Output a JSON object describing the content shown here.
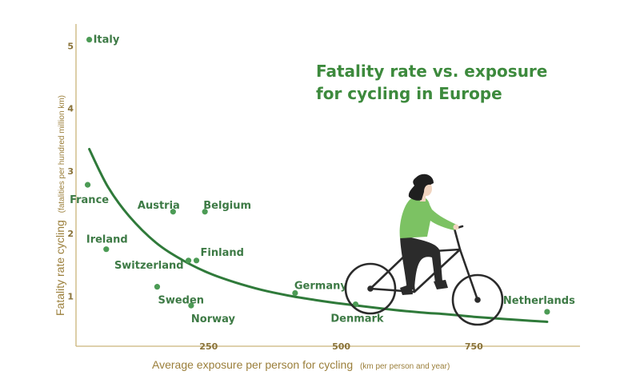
{
  "colors": {
    "axis": "#c9b37a",
    "axis_text": "#9b7f3b",
    "point": "#4c9b55",
    "label": "#3d7a45",
    "curve": "#2f7a3a",
    "title": "#3d8a3d",
    "person_top": "#7cc263",
    "person_pants": "#2b2b2b",
    "hair": "#1f1f1f",
    "bike": "#2b2b2b"
  },
  "chart_data": {
    "type": "scatter",
    "title_lines": [
      "Fatality rate vs. exposure",
      "for cycling in Europe"
    ],
    "xlabel": "Average exposure per person for cycling",
    "xlabel_units": "(km per person and year)",
    "ylabel": "Fatality rate cycling",
    "ylabel_units": "(fatalities per hundred million km)",
    "x_ticks": [
      250,
      500,
      750
    ],
    "y_ticks": [
      1,
      2,
      3,
      4,
      5
    ],
    "xlim": [
      0,
      950
    ],
    "ylim": [
      0.2,
      5.35
    ],
    "grid": false,
    "points": [
      {
        "name": "Italy",
        "x": 25,
        "y": 5.1
      },
      {
        "name": "France",
        "x": 22,
        "y": 2.78
      },
      {
        "name": "Austria",
        "x": 183,
        "y": 2.35
      },
      {
        "name": "Belgium",
        "x": 243,
        "y": 2.35
      },
      {
        "name": "Ireland",
        "x": 57,
        "y": 1.75
      },
      {
        "name": "Switzerland",
        "x": 212,
        "y": 1.57
      },
      {
        "name": "Finland",
        "x": 227,
        "y": 1.57
      },
      {
        "name": "Sweden",
        "x": 153,
        "y": 1.15
      },
      {
        "name": "Norway",
        "x": 217,
        "y": 0.85
      },
      {
        "name": "Germany",
        "x": 413,
        "y": 1.05
      },
      {
        "name": "Denmark",
        "x": 527,
        "y": 0.87
      },
      {
        "name": "Netherlands",
        "x": 888,
        "y": 0.75
      }
    ],
    "trend": {
      "x": [
        25,
        60,
        100,
        150,
        200,
        250,
        300,
        350,
        400,
        450,
        500,
        550,
        600,
        650,
        700,
        750,
        800,
        850,
        888
      ],
      "y": [
        3.35,
        2.75,
        2.28,
        1.86,
        1.58,
        1.37,
        1.22,
        1.1,
        1.01,
        0.94,
        0.88,
        0.83,
        0.78,
        0.74,
        0.71,
        0.67,
        0.64,
        0.61,
        0.59
      ]
    }
  }
}
